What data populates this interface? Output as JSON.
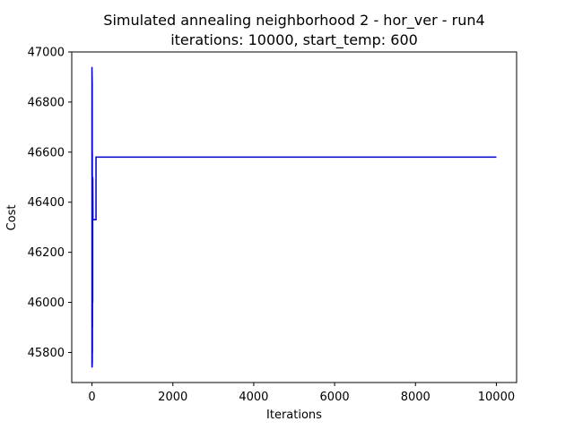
{
  "chart_data": {
    "type": "line",
    "title": "Simulated annealing neighborhood 2 - hor_ver - run4",
    "subtitle": "iterations: 10000, start_temp: 600",
    "xlabel": "Iterations",
    "ylabel": "Cost",
    "xlim": [
      -500,
      10500
    ],
    "ylim": [
      45680,
      47000
    ],
    "x_ticks": [
      0,
      2000,
      4000,
      6000,
      8000,
      10000
    ],
    "y_ticks": [
      45800,
      46000,
      46200,
      46400,
      46600,
      46800,
      47000
    ],
    "grid": false,
    "series": [
      {
        "color": "#0000cc",
        "x": [
          0,
          0,
          0,
          2,
          2,
          4,
          4,
          6,
          6,
          8,
          8,
          10,
          10,
          12,
          12,
          14,
          14,
          16,
          16,
          18,
          18,
          20,
          20,
          25,
          25,
          30,
          30,
          40,
          40,
          50,
          50,
          60,
          60,
          80,
          80,
          100,
          100,
          10000
        ],
        "y": [
          46700,
          45740,
          46940,
          45760,
          46920,
          45740,
          46900,
          45750,
          46880,
          45760,
          46600,
          45800,
          46500,
          45900,
          46450,
          46100,
          46300,
          46250,
          46200,
          46000,
          46350,
          46330,
          46500,
          46330,
          46330,
          46330,
          46330,
          46330,
          46330,
          46330,
          46330,
          46330,
          46330,
          46330,
          46330,
          46330,
          46580,
          46580
        ]
      }
    ]
  }
}
